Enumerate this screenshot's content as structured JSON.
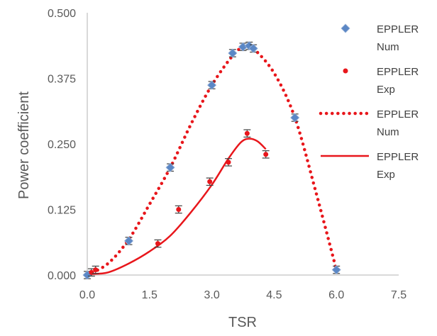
{
  "chart_data": {
    "type": "scatter",
    "title": "",
    "xlabel": "TSR",
    "ylabel": "Power coefficient",
    "xlim": [
      0,
      7.5
    ],
    "ylim": [
      0,
      0.5
    ],
    "x_ticks": [
      "0.0",
      "1.5",
      "3.0",
      "4.5",
      "6.0",
      "7.5"
    ],
    "y_ticks": [
      "0.000",
      "0.125",
      "0.250",
      "0.375",
      "0.500"
    ],
    "grid": false,
    "legend_position": "right",
    "series": [
      {
        "name": "EPPLER Num",
        "kind": "markers",
        "marker": "diamond",
        "color": "#5b87c5",
        "error_bar": 0.007,
        "points": [
          {
            "x": 0.0,
            "y": 0.0
          },
          {
            "x": 1.0,
            "y": 0.065
          },
          {
            "x": 2.0,
            "y": 0.205
          },
          {
            "x": 3.0,
            "y": 0.362
          },
          {
            "x": 3.5,
            "y": 0.423
          },
          {
            "x": 3.75,
            "y": 0.435
          },
          {
            "x": 3.9,
            "y": 0.437
          },
          {
            "x": 4.0,
            "y": 0.432
          },
          {
            "x": 5.0,
            "y": 0.3
          },
          {
            "x": 6.0,
            "y": 0.01
          }
        ]
      },
      {
        "name": "EPPLER Exp",
        "kind": "markers",
        "marker": "circle",
        "color": "#e8161b",
        "error_bar": 0.007,
        "points": [
          {
            "x": 0.1,
            "y": 0.005
          },
          {
            "x": 0.2,
            "y": 0.01
          },
          {
            "x": 1.7,
            "y": 0.06
          },
          {
            "x": 2.2,
            "y": 0.125
          },
          {
            "x": 2.95,
            "y": 0.178
          },
          {
            "x": 3.4,
            "y": 0.215
          },
          {
            "x": 3.85,
            "y": 0.27
          },
          {
            "x": 4.3,
            "y": 0.23
          }
        ]
      },
      {
        "name": "EPPLER Num",
        "kind": "dotted-line",
        "color": "#e8161b",
        "points": [
          {
            "x": 0.0,
            "y": 0.0
          },
          {
            "x": 0.5,
            "y": 0.022
          },
          {
            "x": 1.0,
            "y": 0.068
          },
          {
            "x": 1.5,
            "y": 0.135
          },
          {
            "x": 2.0,
            "y": 0.205
          },
          {
            "x": 2.5,
            "y": 0.288
          },
          {
            "x": 3.0,
            "y": 0.362
          },
          {
            "x": 3.5,
            "y": 0.418
          },
          {
            "x": 3.8,
            "y": 0.437
          },
          {
            "x": 4.0,
            "y": 0.432
          },
          {
            "x": 4.5,
            "y": 0.385
          },
          {
            "x": 5.0,
            "y": 0.3
          },
          {
            "x": 5.5,
            "y": 0.16
          },
          {
            "x": 6.0,
            "y": 0.01
          }
        ]
      },
      {
        "name": "EPPLER Exp",
        "kind": "solid-line",
        "color": "#e8161b",
        "points": [
          {
            "x": 0.1,
            "y": 0.002
          },
          {
            "x": 0.5,
            "y": 0.005
          },
          {
            "x": 1.0,
            "y": 0.022
          },
          {
            "x": 1.5,
            "y": 0.045
          },
          {
            "x": 2.0,
            "y": 0.075
          },
          {
            "x": 2.5,
            "y": 0.12
          },
          {
            "x": 3.0,
            "y": 0.172
          },
          {
            "x": 3.4,
            "y": 0.222
          },
          {
            "x": 3.7,
            "y": 0.253
          },
          {
            "x": 3.9,
            "y": 0.26
          },
          {
            "x": 4.1,
            "y": 0.255
          },
          {
            "x": 4.3,
            "y": 0.24
          }
        ]
      }
    ],
    "legend": [
      {
        "line1": "EPPLER",
        "line2": "Num",
        "symbol": "diamond"
      },
      {
        "line1": "EPPLER",
        "line2": "Exp",
        "symbol": "circle"
      },
      {
        "line1": "EPPLER",
        "line2": "Num",
        "symbol": "dotted-line"
      },
      {
        "line1": "EPPLER",
        "line2": "Exp",
        "symbol": "solid-line"
      }
    ],
    "axis_color": "#d9d9d9",
    "error_bar_color": "#404040"
  }
}
